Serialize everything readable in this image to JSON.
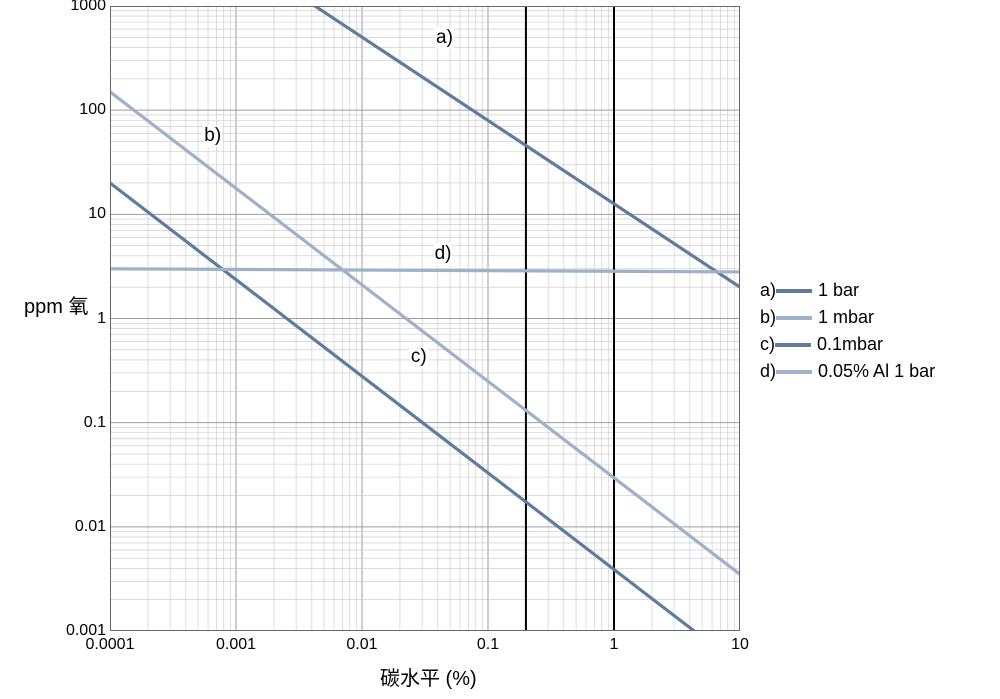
{
  "chart": {
    "type": "line",
    "ylabel": "ppm 氧",
    "xlabel": "碳水平   (%)",
    "label_fontsize": 20,
    "tick_fontsize": 16,
    "xlim": [
      0.0001,
      10
    ],
    "ylim": [
      0.001,
      1000
    ],
    "xscale": "log",
    "yscale": "log",
    "xticks": [
      0.0001,
      0.001,
      0.01,
      0.1,
      1,
      10
    ],
    "xtick_labels": [
      "0.0001",
      "0.001",
      "0.01",
      "0.1",
      "1",
      "10"
    ],
    "yticks": [
      0.001,
      0.01,
      0.1,
      1,
      10,
      100,
      1000
    ],
    "ytick_labels": [
      "0.001",
      "0.01",
      "0.1",
      "1",
      "10",
      "100",
      "1000"
    ],
    "background_color": "#ffffff",
    "grid_major_color": "#9e9e9e",
    "grid_minor_color": "#c7c7c7",
    "border_color": "#686868",
    "line_width": 3.2,
    "series": [
      {
        "id": "a",
        "label": "1 bar",
        "color": "#5f7b9e",
        "x1": 0.0001,
        "y1": 20000,
        "x2": 10,
        "y2": 2,
        "inline": "a)",
        "inline_x": 0.038,
        "inline_y": 480
      },
      {
        "id": "b",
        "label": "1 mbar",
        "color": "#9db2c9",
        "x1": 0.0001,
        "y1": 150,
        "x2": 10,
        "y2": 0.0035,
        "inline": "b)",
        "inline_x": 0.00055,
        "inline_y": 55
      },
      {
        "id": "c",
        "label": "0.1mbar",
        "color": "#5f7b9e",
        "x1": 0.0001,
        "y1": 20,
        "x2": 10,
        "y2": 0.00046,
        "inline": "c)",
        "inline_x": 0.024,
        "inline_y": 0.42
      },
      {
        "id": "d",
        "label": "0.05% Al 1 bar",
        "color": "#9db2c9",
        "x1": 0.0001,
        "y1": 3.0,
        "x2": 10,
        "y2": 2.8,
        "inline": "d)",
        "inline_x": 0.037,
        "inline_y": 4.1
      }
    ],
    "vlines": [
      {
        "x": 0.2,
        "color": "#000000",
        "width": 2
      },
      {
        "x": 1.0,
        "color": "#000000",
        "width": 2
      }
    ],
    "legend": {
      "position": "right",
      "title_fontsize": 18
    }
  }
}
